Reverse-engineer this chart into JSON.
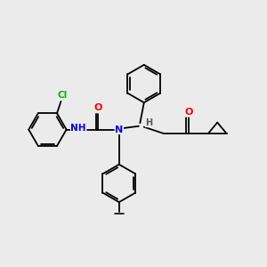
{
  "background_color": "#ebebeb",
  "bond_color": "#000000",
  "atom_colors": {
    "N": "#0000ff",
    "O": "#ff0000",
    "Cl": "#00bb00",
    "H": "#555555",
    "C": "#000000"
  },
  "figsize": [
    3.0,
    3.0
  ],
  "dpi": 100
}
